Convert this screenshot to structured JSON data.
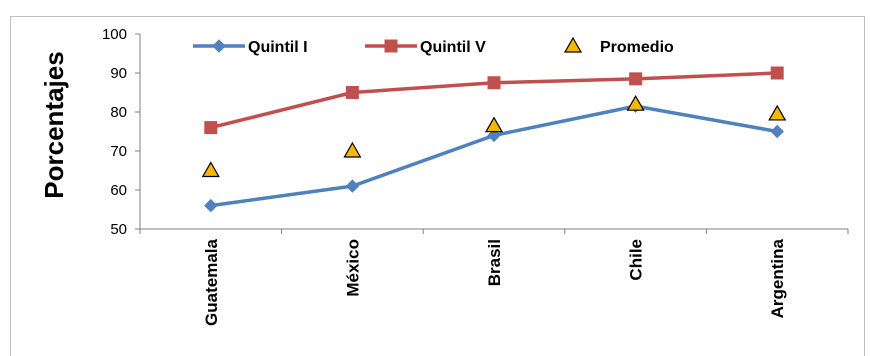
{
  "chart_data": {
    "type": "line",
    "ylabel": "Porcentajes",
    "xlabel": "",
    "ylim": [
      50,
      100
    ],
    "yticks": [
      50,
      60,
      70,
      80,
      90,
      100
    ],
    "grid": false,
    "legend_position": "top",
    "categories": [
      "Guatemala",
      "México",
      "Brasil",
      "Chile",
      "Argentina"
    ],
    "series": [
      {
        "name": "Quintil I",
        "marker": "diamond",
        "color": "#4f81bd",
        "line": true,
        "values": [
          56,
          61,
          74,
          81.5,
          75
        ]
      },
      {
        "name": "Quintil V",
        "marker": "square",
        "color": "#c0504d",
        "line": true,
        "values": [
          76,
          85,
          87.5,
          88.5,
          90
        ]
      },
      {
        "name": "Promedio",
        "marker": "triangle",
        "color": "#f5b800",
        "line": false,
        "values": [
          65,
          70,
          76.5,
          82,
          79.5
        ]
      }
    ]
  }
}
